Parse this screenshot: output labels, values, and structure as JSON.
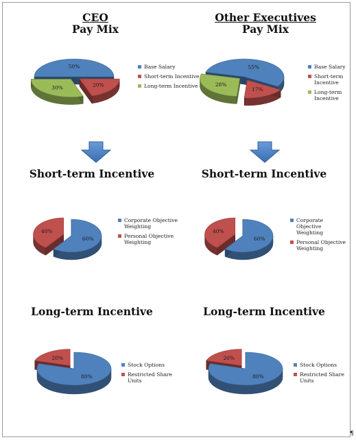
{
  "page": {
    "pilcrow": "¶"
  },
  "colors": {
    "blue": "#4f81bd",
    "red": "#c0504d",
    "green": "#9bbb59"
  },
  "chart_data": [
    {
      "id": "ceo-pay-mix",
      "type": "pie",
      "title_underlined": "CEO",
      "title": "Pay Mix",
      "slices": [
        {
          "label": "Base Salary",
          "value": 50,
          "value_label": "50%",
          "color": "#4f81bd"
        },
        {
          "label": "Short-term Incentive",
          "value": 20,
          "value_label": "20%",
          "color": "#c0504d"
        },
        {
          "label": "Long-term Incentive",
          "value": 30,
          "value_label": "30%",
          "color": "#9bbb59"
        }
      ],
      "legend": "right"
    },
    {
      "id": "other-pay-mix",
      "type": "pie",
      "title_underlined": "Other Executives",
      "title": "Pay Mix",
      "slices": [
        {
          "label": "Base Salary",
          "value": 55,
          "value_label": "55%",
          "color": "#4f81bd"
        },
        {
          "label": "Short-term Incentive",
          "value": 17,
          "value_label": "17%",
          "color": "#c0504d"
        },
        {
          "label": "Long-term Incentive",
          "value": 28,
          "value_label": "28%",
          "color": "#9bbb59"
        }
      ],
      "legend": "right"
    },
    {
      "id": "ceo-sti",
      "type": "pie",
      "title": "Short-term Incentive",
      "slices": [
        {
          "label": "Corporate Objective Weighting",
          "value": 60,
          "value_label": "60%",
          "color": "#4f81bd"
        },
        {
          "label": "Personal Objective Weighting",
          "value": 40,
          "value_label": "40%",
          "color": "#c0504d"
        }
      ],
      "legend": "right"
    },
    {
      "id": "other-sti",
      "type": "pie",
      "title": "Short-term Incentive",
      "slices": [
        {
          "label": "Corporate Objective Weighting",
          "value": 60,
          "value_label": "60%",
          "color": "#4f81bd"
        },
        {
          "label": "Personal Objective Weighting",
          "value": 40,
          "value_label": "40%",
          "color": "#c0504d"
        }
      ],
      "legend": "right"
    },
    {
      "id": "ceo-lti",
      "type": "pie",
      "title": "Long-term Incentive",
      "slices": [
        {
          "label": "Stock Options",
          "value": 80,
          "value_label": "80%",
          "color": "#4f81bd"
        },
        {
          "label": "Restricted Share Units",
          "value": 20,
          "value_label": "20%",
          "color": "#c0504d"
        }
      ],
      "legend": "right"
    },
    {
      "id": "other-lti",
      "type": "pie",
      "title": "Long-term Incentive",
      "slices": [
        {
          "label": "Stock Options",
          "value": 80,
          "value_label": "80%",
          "color": "#4f81bd"
        },
        {
          "label": "Restricted Share Units",
          "value": 20,
          "value_label": "20%",
          "color": "#c0504d"
        }
      ],
      "legend": "right"
    }
  ]
}
